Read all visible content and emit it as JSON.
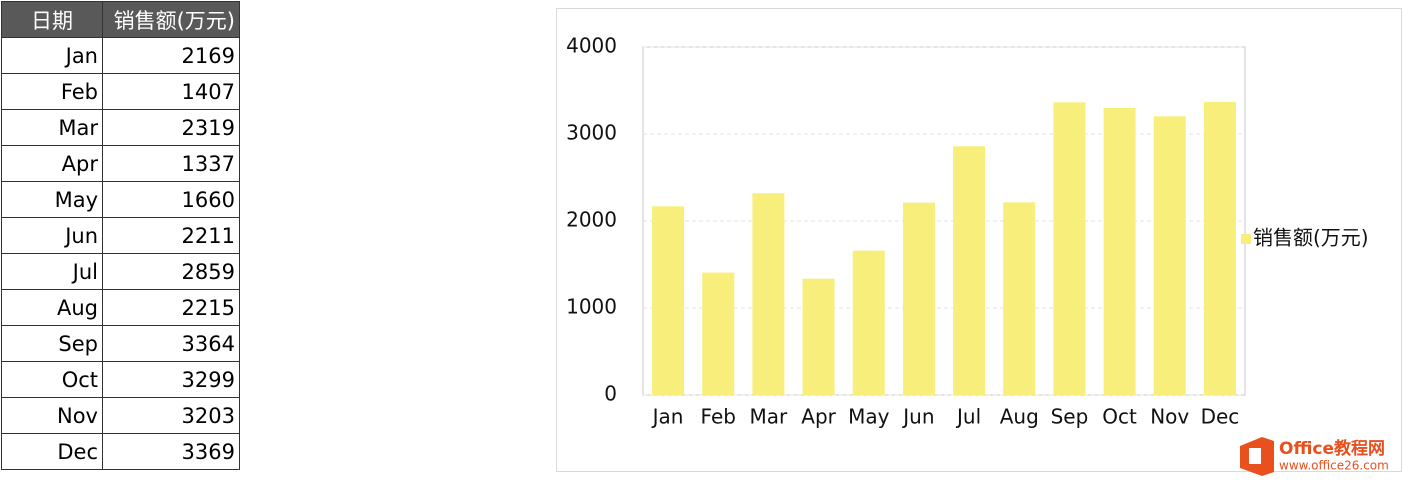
{
  "table": {
    "header": [
      "日期",
      "销售额(万元)"
    ],
    "rows": [
      [
        "Jan",
        "2169"
      ],
      [
        "Feb",
        "1407"
      ],
      [
        "Mar",
        "2319"
      ],
      [
        "Apr",
        "1337"
      ],
      [
        "May",
        "1660"
      ],
      [
        "Jun",
        "2211"
      ],
      [
        "Jul",
        "2859"
      ],
      [
        "Aug",
        "2215"
      ],
      [
        "Sep",
        "3364"
      ],
      [
        "Oct",
        "3299"
      ],
      [
        "Nov",
        "3203"
      ],
      [
        "Dec",
        "3369"
      ]
    ]
  },
  "chart_data": {
    "type": "bar",
    "categories": [
      "Jan",
      "Feb",
      "Mar",
      "Apr",
      "May",
      "Jun",
      "Jul",
      "Aug",
      "Sep",
      "Oct",
      "Nov",
      "Dec"
    ],
    "series": [
      {
        "name": "销售额(万元)",
        "color": "#f7ee7c",
        "values": [
          2169,
          1407,
          2319,
          1337,
          1660,
          2211,
          2859,
          2215,
          3364,
          3299,
          3203,
          3369
        ]
      }
    ],
    "ylim": [
      0,
      4000
    ],
    "yticks": [
      0,
      1000,
      2000,
      3000,
      4000
    ],
    "grid": true,
    "legend": "right"
  },
  "watermark": {
    "title": "Office教程网",
    "url": "www.office26.com"
  }
}
